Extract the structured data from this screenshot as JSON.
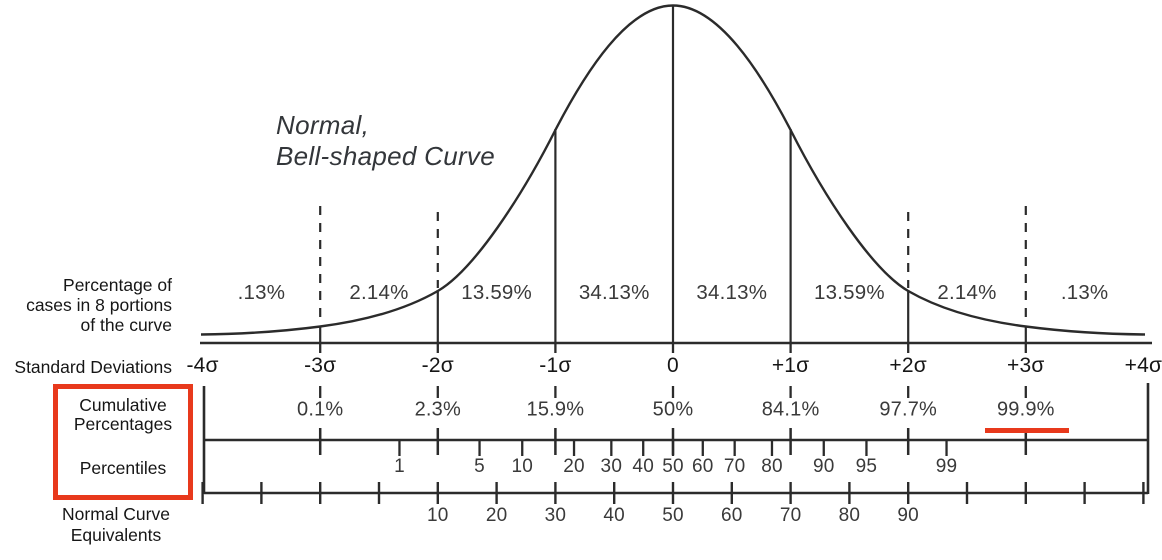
{
  "title": "Normal,\nBell-shaped Curve",
  "row_labels": {
    "portions": "Percentage of\ncases in 8 portions\nof the curve",
    "std_dev": "Standard Deviations",
    "cumulative": "Cumulative\nPercentages",
    "percentiles": "Percentiles",
    "nce": "Normal Curve\nEquivalents"
  },
  "colors": {
    "accent_red": "#e8391c",
    "line_ink": "#2b2b2b",
    "value_text": "#3a3a3a"
  },
  "chart_data": {
    "type": "area",
    "title": "Normal, Bell-shaped Curve",
    "description": "Standard normal distribution showing percentage of cases in 8 portions of the curve, standard deviations, cumulative percentages, percentiles and normal curve equivalents",
    "x_axis": {
      "label": "Standard Deviations",
      "range_sigma": [
        -4,
        4
      ],
      "ticks": [
        "-4σ",
        "-3σ",
        "-2σ",
        "-1σ",
        "0",
        "+1σ",
        "+2σ",
        "+3σ",
        "+4σ"
      ]
    },
    "portion_percentages": {
      "label": "Percentage of cases in 8 portions of the curve",
      "segments_sigma": [
        "-4 to -3",
        "-3 to -2",
        "-2 to -1",
        "-1 to 0",
        "0 to +1",
        "+1 to +2",
        "+2 to +3",
        "+3 to +4"
      ],
      "labels": [
        ".13%",
        "2.14%",
        "13.59%",
        "34.13%",
        "34.13%",
        "13.59%",
        "2.14%",
        ".13%"
      ]
    },
    "cumulative_percentages": {
      "label": "Cumulative Percentages",
      "at_sigma": [
        -3,
        -2,
        -1,
        0,
        1,
        2,
        3
      ],
      "labels": [
        "0.1%",
        "2.3%",
        "15.9%",
        "50%",
        "84.1%",
        "97.7%",
        "99.9%"
      ],
      "highlighted_value": "99.9%",
      "highlight_style": "red underline"
    },
    "percentiles": {
      "label": "Percentiles",
      "values": [
        1,
        5,
        10,
        20,
        30,
        40,
        50,
        60,
        70,
        80,
        90,
        95,
        99
      ]
    },
    "normal_curve_equivalents": {
      "label": "Normal Curve Equivalents",
      "values": [
        10,
        20,
        30,
        40,
        50,
        60,
        70,
        80,
        90
      ]
    },
    "layout_hints": {
      "dashed_gridlines_at_sigma": [
        -3,
        -2,
        2,
        3
      ],
      "solid_division_lines_at_sigma": [
        -3,
        -2,
        -1,
        0,
        1,
        2,
        3
      ],
      "legend": "none",
      "grid": "off"
    }
  }
}
